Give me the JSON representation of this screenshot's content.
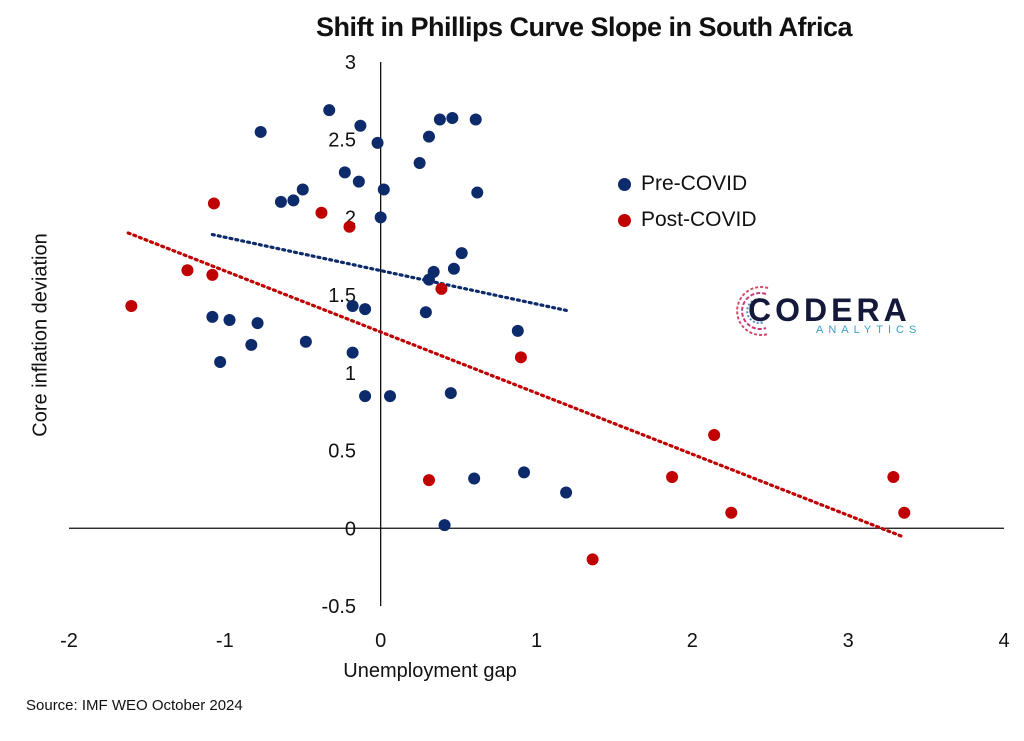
{
  "chart_data": {
    "type": "scatter",
    "title": "Shift in Phillips Curve Slope in South Africa",
    "xlabel": "Unemployment gap",
    "ylabel": "Core inflation deviation",
    "xlim": [
      -2,
      4
    ],
    "ylim": [
      -0.5,
      3
    ],
    "xticks": [
      "-2",
      "-1",
      "0",
      "1",
      "2",
      "3",
      "4"
    ],
    "yticks": [
      "-0.5",
      "0",
      "0.5",
      "1",
      "1.5",
      "2",
      "2.5",
      "3"
    ],
    "legend_position": "right",
    "series": [
      {
        "name": "Pre-COVID",
        "color": "#0d2a6b",
        "points": [
          [
            -0.77,
            2.55
          ],
          [
            -0.33,
            2.69
          ],
          [
            -0.13,
            2.59
          ],
          [
            -0.02,
            2.48
          ],
          [
            0.38,
            2.63
          ],
          [
            0.46,
            2.64
          ],
          [
            0.61,
            2.63
          ],
          [
            0.31,
            2.52
          ],
          [
            0.25,
            2.35
          ],
          [
            -0.23,
            2.29
          ],
          [
            -0.14,
            2.23
          ],
          [
            0.02,
            2.18
          ],
          [
            -0.5,
            2.18
          ],
          [
            -0.56,
            2.11
          ],
          [
            -0.64,
            2.1
          ],
          [
            0.62,
            2.16
          ],
          [
            0.0,
            2.0
          ],
          [
            0.52,
            1.77
          ],
          [
            0.47,
            1.67
          ],
          [
            0.34,
            1.65
          ],
          [
            0.31,
            1.6
          ],
          [
            -0.18,
            1.43
          ],
          [
            -0.1,
            1.41
          ],
          [
            0.29,
            1.39
          ],
          [
            0.88,
            1.27
          ],
          [
            -1.08,
            1.36
          ],
          [
            -0.97,
            1.34
          ],
          [
            -0.79,
            1.32
          ],
          [
            -0.48,
            1.2
          ],
          [
            -0.83,
            1.18
          ],
          [
            -0.18,
            1.13
          ],
          [
            -1.03,
            1.07
          ],
          [
            -0.1,
            0.85
          ],
          [
            0.06,
            0.85
          ],
          [
            0.45,
            0.87
          ],
          [
            0.92,
            0.36
          ],
          [
            0.6,
            0.32
          ],
          [
            1.19,
            0.23
          ],
          [
            0.41,
            0.02
          ]
        ],
        "trend": [
          [
            -1.08,
            1.89
          ],
          [
            1.2,
            1.4
          ]
        ]
      },
      {
        "name": "Post-COVID",
        "color": "#c00000",
        "points": [
          [
            -1.07,
            2.09
          ],
          [
            -0.38,
            2.03
          ],
          [
            -0.2,
            1.94
          ],
          [
            -1.24,
            1.66
          ],
          [
            -1.08,
            1.63
          ],
          [
            -1.6,
            1.43
          ],
          [
            0.39,
            1.54
          ],
          [
            0.9,
            1.1
          ],
          [
            2.14,
            0.6
          ],
          [
            1.87,
            0.33
          ],
          [
            3.29,
            0.33
          ],
          [
            0.31,
            0.31
          ],
          [
            2.25,
            0.1
          ],
          [
            3.36,
            0.1
          ],
          [
            1.36,
            -0.2
          ]
        ],
        "trend": [
          [
            -1.62,
            1.9
          ],
          [
            3.34,
            -0.05
          ]
        ]
      }
    ]
  },
  "logo": {
    "word": "CODERA",
    "sub": "ANALYTICS"
  },
  "source": "Source: IMF WEO October 2024"
}
